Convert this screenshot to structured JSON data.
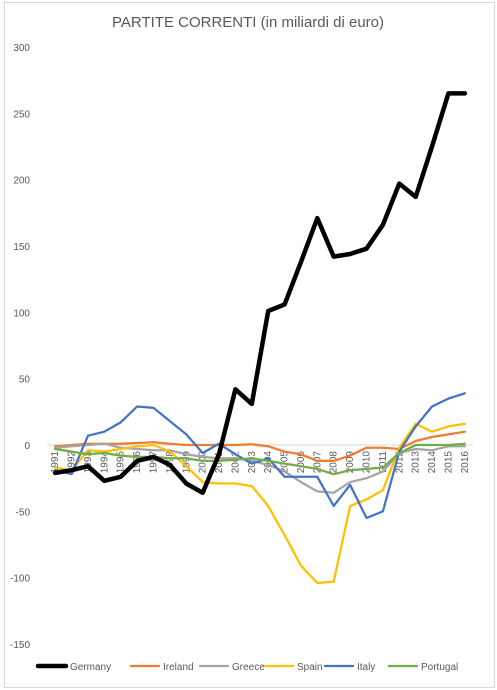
{
  "chart_data": {
    "type": "line",
    "title": "PARTITE CORRENTI (in miliardi di euro)",
    "xlabel": "",
    "ylabel": "",
    "ylim": [
      -150,
      300
    ],
    "yticks": [
      -150,
      -100,
      -50,
      0,
      50,
      100,
      150,
      200,
      250,
      300
    ],
    "grid": false,
    "legend_position": "bottom",
    "categories": [
      "1991",
      "1992",
      "1993",
      "1994",
      "1995",
      "1996",
      "1997",
      "1998",
      "1999",
      "2000",
      "2001",
      "2002",
      "2003",
      "2004",
      "2005",
      "2006",
      "2007",
      "2008",
      "2009",
      "2010",
      "2011",
      "2012",
      "2013",
      "2014",
      "2015",
      "2016"
    ],
    "series": [
      {
        "name": "Germany",
        "color": "#000000",
        "values": [
          -21,
          -19,
          -16,
          -27,
          -24,
          -12,
          -9,
          -15,
          -29,
          -36,
          -7,
          42,
          31,
          101,
          106,
          138,
          171,
          142,
          144,
          148,
          166,
          197,
          187,
          225,
          265,
          265
        ]
      },
      {
        "name": "Ireland",
        "color": "#ED7D31",
        "values": [
          -1,
          0,
          1,
          1,
          1,
          1.5,
          2,
          1,
          0,
          0,
          0,
          0,
          0.5,
          -1,
          -5,
          -7,
          -12,
          -12,
          -8,
          -2,
          -2,
          -3,
          3,
          6,
          8,
          10
        ]
      },
      {
        "name": "Greece",
        "color": "#A5A5A5",
        "values": [
          -2,
          -1,
          0,
          1,
          -2,
          -3,
          -4,
          -4,
          -7,
          -9,
          -10,
          -10,
          -12,
          -15,
          -20,
          -28,
          -35,
          -36,
          -28,
          -25,
          -20,
          -6,
          -3,
          -4,
          -1,
          -1
        ]
      },
      {
        "name": "Spain",
        "color": "#FFC000",
        "values": [
          -17,
          -19,
          -4,
          -5,
          -3,
          -1,
          0,
          -5,
          -16,
          -28,
          -29,
          -29,
          -31,
          -46,
          -68,
          -91,
          -104,
          -103,
          -46,
          -41,
          -34,
          -2,
          16,
          10,
          14,
          16
        ]
      },
      {
        "name": "Italy",
        "color": "#4472C4",
        "values": [
          -19,
          -22,
          7,
          10,
          17,
          29,
          28,
          18,
          8,
          -6,
          1,
          -7,
          -14,
          -10,
          -24,
          -24,
          -24,
          -46,
          -30,
          -55,
          -50,
          -5,
          14,
          29,
          35,
          39
        ]
      },
      {
        "name": "Portugal",
        "color": "#70AD47",
        "values": [
          -3,
          -5,
          -7,
          -6,
          -8,
          -9,
          -9,
          -10,
          -10,
          -12,
          -12,
          -11,
          -10,
          -12,
          -14,
          -16,
          -18,
          -22,
          -19,
          -18,
          -17,
          -6,
          0,
          0,
          0,
          1
        ]
      }
    ]
  }
}
